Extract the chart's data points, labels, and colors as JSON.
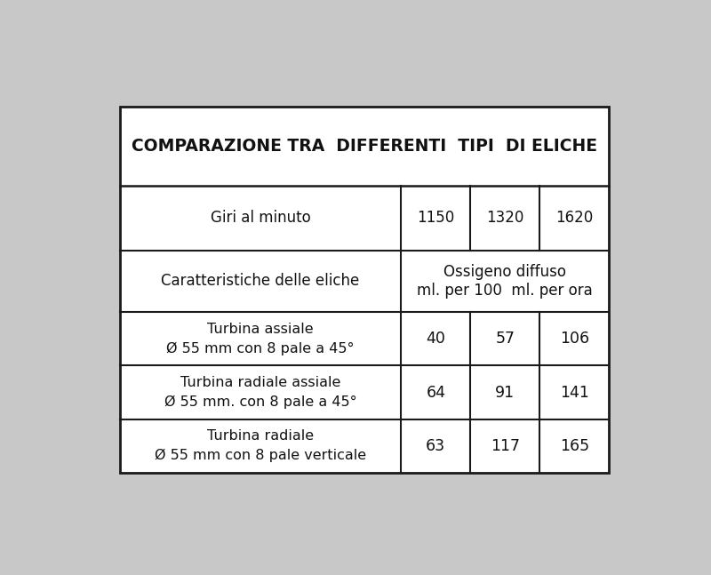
{
  "title": "COMPARAZIONE TRA  DIFFERENTI  TIPI  DI ELICHE",
  "col_header_label": "Giri al minuto",
  "col_headers": [
    "1150",
    "1320",
    "1620"
  ],
  "row_header_label1": "Caratteristiche delle eliche",
  "row_header_label2": "Ossigeno diffuso\nml. per 100  ml. per ora",
  "rows": [
    {
      "label_line1": "Turbina assiale",
      "label_line2": "Ø 55 mm con 8 pale a 45°",
      "values": [
        "40",
        "57",
        "106"
      ]
    },
    {
      "label_line1": "Turbina radiale assiale",
      "label_line2": "Ø 55 mm. con 8 pale a 45°",
      "values": [
        "64",
        "91",
        "141"
      ]
    },
    {
      "label_line1": "Turbina radiale",
      "label_line2": "Ø 55 mm con 8 pale verticale",
      "values": [
        "63",
        "117",
        "165"
      ]
    }
  ],
  "bg_color": "#c8c8c8",
  "table_bg": "#ffffff",
  "border_color": "#1a1a1a",
  "text_color": "#111111",
  "title_fontsize": 13.5,
  "header_fontsize": 12,
  "cell_fontsize": 11.5,
  "figsize": [
    8.0,
    6.47
  ]
}
